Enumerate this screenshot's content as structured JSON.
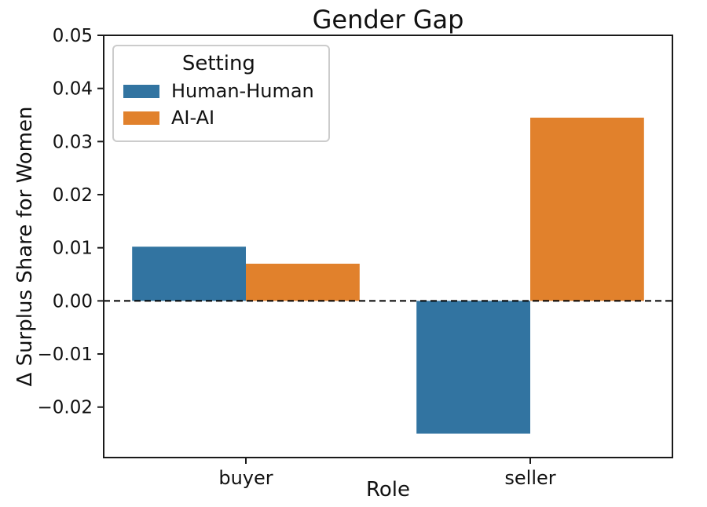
{
  "chart_data": {
    "type": "bar",
    "title": "Gender Gap",
    "xlabel": "Role",
    "ylabel": "Δ Surplus Share for Women",
    "categories": [
      "buyer",
      "seller"
    ],
    "series": [
      {
        "name": "Human-Human",
        "color": "#3274a1",
        "values": [
          0.0102,
          -0.025
        ]
      },
      {
        "name": "AI-AI",
        "color": "#e1812c",
        "values": [
          0.007,
          0.0345
        ]
      }
    ],
    "ylim": [
      -0.0295,
      0.05
    ],
    "yticks": [
      0.05,
      0.04,
      0.03,
      0.02,
      0.01,
      0.0,
      -0.01,
      -0.02
    ],
    "legend_title": "Setting",
    "legend_position": "upper left",
    "zero_line": {
      "style": "dashed",
      "color": "#000000",
      "y": 0
    },
    "grid": false,
    "bar_group_width_fraction": 0.8,
    "axis_color": "#1a1a1a",
    "background_color": "#ffffff"
  }
}
